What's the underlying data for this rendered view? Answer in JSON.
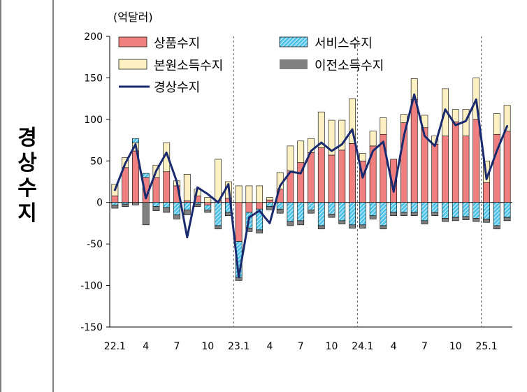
{
  "side_title": [
    "경",
    "상",
    "수",
    "지"
  ],
  "colors": {
    "goods": "#f08080",
    "services": "#4fc3e8",
    "primary_income": "#fdf0c2",
    "secondary_income": "#808080",
    "current_account": "#1a2a6e"
  },
  "chart_data": {
    "type": "bar",
    "unit": "(억달러)",
    "ylim": [
      -150,
      200
    ],
    "yticks": [
      -150,
      -100,
      -50,
      0,
      50,
      100,
      150,
      200
    ],
    "x_tick_labels": [
      {
        "index": 0,
        "label": "22.1"
      },
      {
        "index": 3,
        "label": "4"
      },
      {
        "index": 6,
        "label": "7"
      },
      {
        "index": 9,
        "label": "10"
      },
      {
        "index": 12,
        "label": "23.1"
      },
      {
        "index": 15,
        "label": "4"
      },
      {
        "index": 18,
        "label": "7"
      },
      {
        "index": 21,
        "label": "10"
      },
      {
        "index": 24,
        "label": "24.1"
      },
      {
        "index": 27,
        "label": "4"
      },
      {
        "index": 30,
        "label": "7"
      },
      {
        "index": 33,
        "label": "10"
      },
      {
        "index": 36,
        "label": "25.1"
      }
    ],
    "year_dividers": [
      12,
      24,
      36
    ],
    "legend": {
      "goods": "상품수지",
      "services": "서비스수지",
      "primary_income": "본원소득수지",
      "secondary_income": "이전소득수지",
      "current_account": "경상수지"
    },
    "series": {
      "goods": [
        8,
        42,
        62,
        30,
        30,
        37,
        20,
        2,
        8,
        -3,
        2,
        5,
        -47,
        -12,
        -8,
        3,
        16,
        38,
        48,
        60,
        66,
        57,
        63,
        71,
        50,
        68,
        82,
        52,
        96,
        124,
        90,
        70,
        80,
        97,
        80,
        100,
        24,
        82,
        86
      ],
      "primary_income": [
        14,
        12,
        10,
        0,
        15,
        35,
        6,
        32,
        8,
        6,
        50,
        20,
        20,
        20,
        20,
        3,
        20,
        30,
        26,
        17,
        43,
        42,
        36,
        54,
        9,
        18,
        20,
        0,
        10,
        25,
        15,
        10,
        57,
        15,
        32,
        50,
        26,
        25,
        31
      ],
      "services": [
        -3,
        -2,
        5,
        5,
        -5,
        -6,
        -15,
        -9,
        -2,
        -6,
        -28,
        -12,
        -43,
        -19,
        -25,
        -5,
        -8,
        -23,
        -22,
        -9,
        -28,
        -14,
        -22,
        -27,
        -27,
        -16,
        -28,
        -12,
        -12,
        -12,
        -22,
        -12,
        -19,
        -18,
        -17,
        -19,
        -20,
        -28,
        -18
      ],
      "secondary_income": [
        -4,
        -3,
        -3,
        -27,
        -5,
        -6,
        -5,
        -6,
        -3,
        -3,
        -4,
        -4,
        -4,
        -4,
        -4,
        -4,
        -5,
        -5,
        -5,
        -4,
        -4,
        -4,
        -4,
        -4,
        -4,
        -4,
        -4,
        -4,
        -4,
        -4,
        -4,
        -4,
        -4,
        -4,
        -4,
        -4,
        -4,
        -4,
        -4
      ],
      "current_account": [
        15,
        47,
        70,
        5,
        38,
        60,
        25,
        -42,
        18,
        10,
        0,
        22,
        -90,
        -18,
        -10,
        -25,
        20,
        37,
        35,
        62,
        72,
        62,
        70,
        88,
        30,
        62,
        73,
        13,
        80,
        130,
        80,
        68,
        112,
        93,
        98,
        124,
        28,
        62,
        92
      ]
    }
  }
}
